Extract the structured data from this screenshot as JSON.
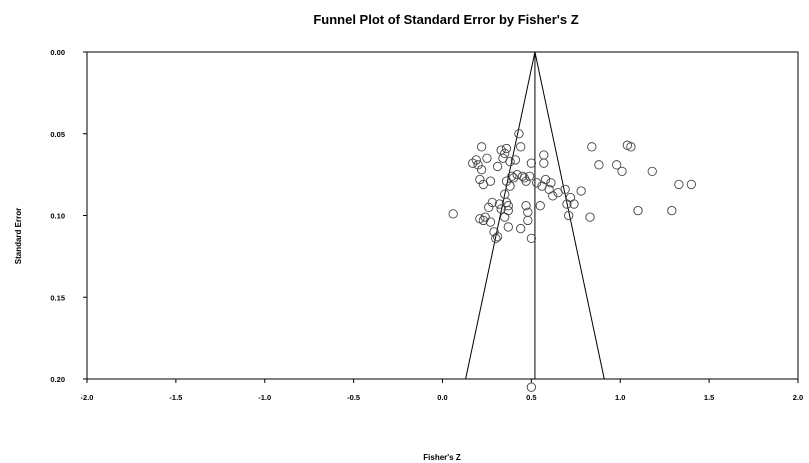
{
  "chart_data": {
    "type": "scatter",
    "title": "Funnel Plot of Standard Error by Fisher's Z",
    "xlabel": "Fisher's Z",
    "ylabel": "Standard Error",
    "xlim": [
      -2.0,
      2.0
    ],
    "ylim": [
      0.0,
      0.2
    ],
    "y_reversed": true,
    "x_ticks": [
      "-2.0",
      "-1.5",
      "-1.0",
      "-0.5",
      "0.0",
      "0.5",
      "1.0",
      "1.5",
      "2.0"
    ],
    "x_tick_values": [
      -2.0,
      -1.5,
      -1.0,
      -0.5,
      0.0,
      0.5,
      1.0,
      1.5,
      2.0
    ],
    "y_ticks": [
      "0.00",
      "0.05",
      "0.10",
      "0.15",
      "0.20"
    ],
    "y_tick_values": [
      0.0,
      0.05,
      0.1,
      0.15,
      0.2
    ],
    "grid": false,
    "legend": "none",
    "summary_effect": 0.52,
    "funnel": {
      "apex": [
        0.52,
        0.0
      ],
      "left_base": [
        0.13,
        0.2
      ],
      "right_base": [
        0.91,
        0.2
      ]
    },
    "points": [
      [
        0.06,
        0.099
      ],
      [
        0.17,
        0.068
      ],
      [
        0.19,
        0.066
      ],
      [
        0.2,
        0.069
      ],
      [
        0.21,
        0.078
      ],
      [
        0.22,
        0.072
      ],
      [
        0.22,
        0.058
      ],
      [
        0.23,
        0.081
      ],
      [
        0.23,
        0.103
      ],
      [
        0.21,
        0.102
      ],
      [
        0.24,
        0.101
      ],
      [
        0.25,
        0.065
      ],
      [
        0.27,
        0.079
      ],
      [
        0.26,
        0.095
      ],
      [
        0.27,
        0.104
      ],
      [
        0.28,
        0.092
      ],
      [
        0.29,
        0.11
      ],
      [
        0.3,
        0.114
      ],
      [
        0.31,
        0.113
      ],
      [
        0.32,
        0.093
      ],
      [
        0.31,
        0.07
      ],
      [
        0.33,
        0.096
      ],
      [
        0.33,
        0.06
      ],
      [
        0.34,
        0.065
      ],
      [
        0.35,
        0.062
      ],
      [
        0.36,
        0.059
      ],
      [
        0.36,
        0.079
      ],
      [
        0.35,
        0.087
      ],
      [
        0.35,
        0.101
      ],
      [
        0.36,
        0.092
      ],
      [
        0.37,
        0.094
      ],
      [
        0.37,
        0.097
      ],
      [
        0.37,
        0.107
      ],
      [
        0.38,
        0.082
      ],
      [
        0.38,
        0.067
      ],
      [
        0.39,
        0.076
      ],
      [
        0.4,
        0.077
      ],
      [
        0.41,
        0.066
      ],
      [
        0.42,
        0.075
      ],
      [
        0.43,
        0.05
      ],
      [
        0.44,
        0.058
      ],
      [
        0.44,
        0.108
      ],
      [
        0.45,
        0.076
      ],
      [
        0.46,
        0.077
      ],
      [
        0.47,
        0.079
      ],
      [
        0.47,
        0.094
      ],
      [
        0.48,
        0.098
      ],
      [
        0.49,
        0.076
      ],
      [
        0.5,
        0.068
      ],
      [
        0.48,
        0.103
      ],
      [
        0.5,
        0.114
      ],
      [
        0.53,
        0.08
      ],
      [
        0.55,
        0.094
      ],
      [
        0.56,
        0.082
      ],
      [
        0.57,
        0.063
      ],
      [
        0.57,
        0.068
      ],
      [
        0.58,
        0.078
      ],
      [
        0.6,
        0.084
      ],
      [
        0.61,
        0.08
      ],
      [
        0.62,
        0.088
      ],
      [
        0.65,
        0.086
      ],
      [
        0.69,
        0.084
      ],
      [
        0.7,
        0.093
      ],
      [
        0.71,
        0.1
      ],
      [
        0.72,
        0.089
      ],
      [
        0.74,
        0.093
      ],
      [
        0.78,
        0.085
      ],
      [
        0.83,
        0.101
      ],
      [
        0.84,
        0.058
      ],
      [
        0.88,
        0.069
      ],
      [
        0.98,
        0.069
      ],
      [
        1.01,
        0.073
      ],
      [
        1.04,
        0.057
      ],
      [
        1.06,
        0.058
      ],
      [
        1.1,
        0.097
      ],
      [
        1.18,
        0.073
      ],
      [
        1.29,
        0.097
      ],
      [
        1.33,
        0.081
      ],
      [
        1.4,
        0.081
      ],
      [
        0.5,
        0.205
      ]
    ]
  }
}
